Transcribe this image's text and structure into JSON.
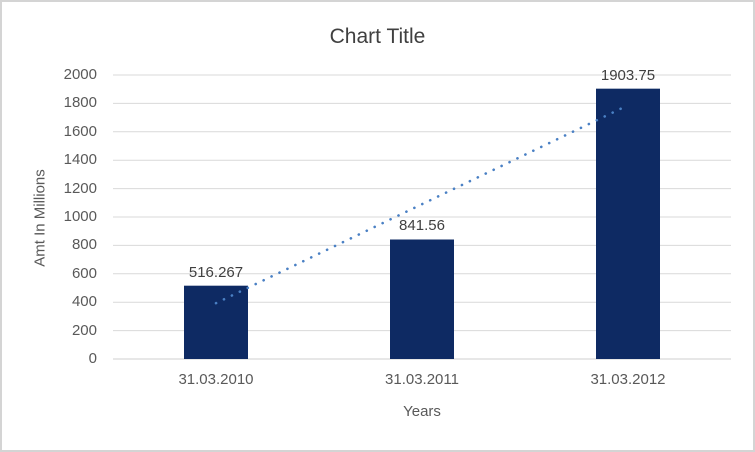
{
  "window": {
    "background": "#ffffff",
    "border_color": "#d4d4d4"
  },
  "chart_data": {
    "type": "bar",
    "title": "Chart Title",
    "xlabel": "Years",
    "ylabel": "Amt In Millions",
    "categories": [
      "31.03.2010",
      "31.03.2011",
      "31.03.2012"
    ],
    "values": [
      516.267,
      841.56,
      1903.75
    ],
    "data_labels": [
      "516.267",
      "841.56",
      "1903.75"
    ],
    "ylim": [
      0,
      2000
    ],
    "ytick_step": 200,
    "grid": true,
    "legend": "none",
    "bar_color": "#0e2a63",
    "gridline_color": "#d9d9d9",
    "axis_line_color": "#cfcfcf",
    "trendline": {
      "type": "linear",
      "style": "dotted",
      "color": "#4a80c4"
    },
    "text_colors": {
      "title": "#404040",
      "ticks": "#595959",
      "axis_titles": "#595959",
      "data_labels": "#404040"
    }
  }
}
